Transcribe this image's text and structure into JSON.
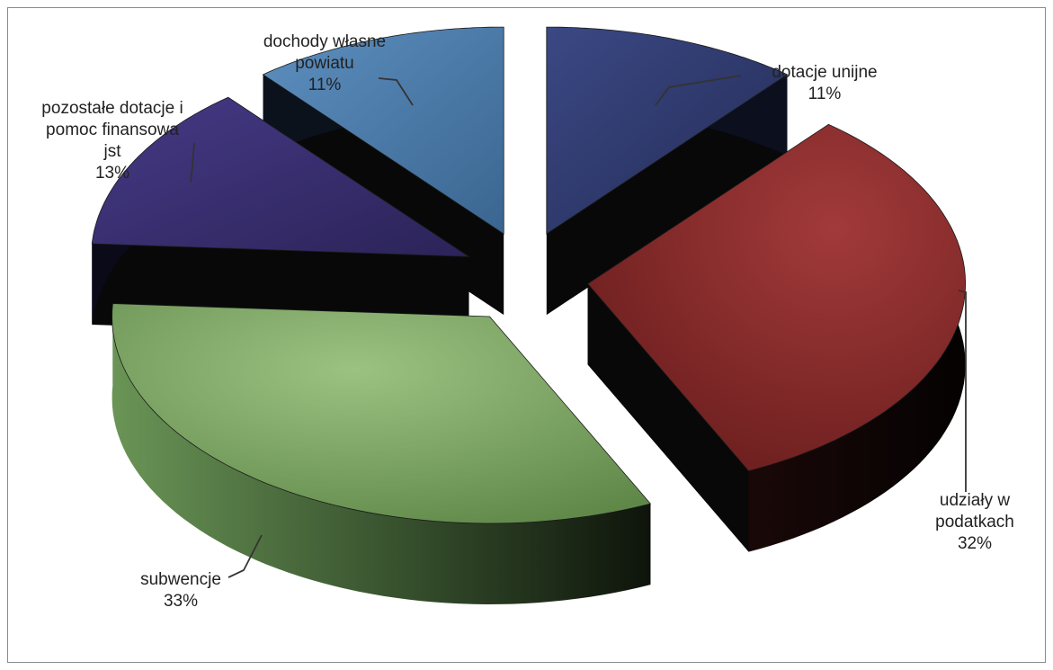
{
  "chart_data": {
    "type": "pie",
    "style": "3d-exploded",
    "slices": [
      {
        "label": "dotacje unijne",
        "value": 11,
        "display": "dotacje unijne\n11%",
        "color": "#2f3a6e"
      },
      {
        "label": "udziały w podatkach",
        "value": 32,
        "display": "udziały w\npodatkach\n32%",
        "color": "#8a2c2c"
      },
      {
        "label": "subwencje",
        "value": 33,
        "display": "subwencje\n33%",
        "color": "#78a05e"
      },
      {
        "label": "pozostałe dotacje i pomoc finansowa jst",
        "value": 13,
        "display": "pozostałe dotacje i\npomoc finansowa\njst\n13%",
        "color": "#3a3070"
      },
      {
        "label": "dochody własne powiatu",
        "value": 11,
        "display": "dochody własne\npowiatu\n11%",
        "color": "#4a78a6"
      }
    ],
    "legend": "none"
  }
}
